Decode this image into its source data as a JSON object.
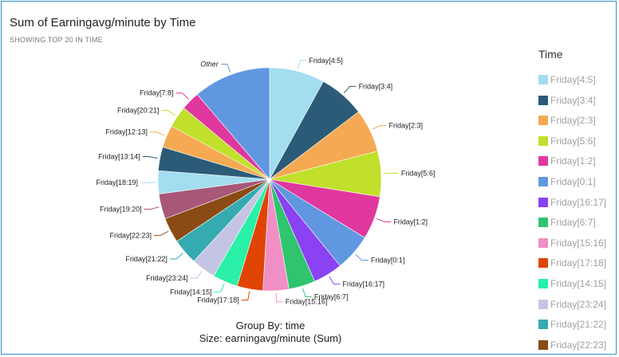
{
  "title": "Sum of Earningavg/minute by Time",
  "subtitle": "SHOWING TOP 20 IN TIME",
  "legend_title": "Time",
  "footer": {
    "group_by": "Group By: time",
    "size": "Size: earningavg/minute (Sum)"
  },
  "chart_data": {
    "type": "pie",
    "title": "Sum of Earningavg/minute by Time",
    "start_angle_deg": 0,
    "slices": [
      {
        "label": "Friday[4:5]",
        "value": 7.9,
        "color": "#a3ddf0"
      },
      {
        "label": "Friday[3:4]",
        "value": 6.6,
        "color": "#2c5b78"
      },
      {
        "label": "Friday[2:3]",
        "value": 6.2,
        "color": "#f5a952"
      },
      {
        "label": "Friday[5:6]",
        "value": 6.5,
        "color": "#c0e02c"
      },
      {
        "label": "Friday[1:2]",
        "value": 6.2,
        "color": "#e0379e"
      },
      {
        "label": "Friday[0:1]",
        "value": 5.3,
        "color": "#6197e0"
      },
      {
        "label": "Friday[16:17]",
        "value": 4.2,
        "color": "#8a42f2"
      },
      {
        "label": "Friday[6:7]",
        "value": 3.8,
        "color": "#2ec56e"
      },
      {
        "label": "Friday[15:16]",
        "value": 3.7,
        "color": "#f08fc5"
      },
      {
        "label": "Friday[17:18]",
        "value": 3.7,
        "color": "#e04404"
      },
      {
        "label": "Friday[14:15]",
        "value": 3.6,
        "color": "#2af0a8"
      },
      {
        "label": "Friday[23:24]",
        "value": 3.5,
        "color": "#c4c5e4"
      },
      {
        "label": "Friday[21:22]",
        "value": 3.7,
        "color": "#35aab0"
      },
      {
        "label": "Friday[22:23]",
        "value": 3.6,
        "color": "#8a4b14"
      },
      {
        "label": "Friday[19:20]",
        "value": 3.6,
        "color": "#a85778"
      },
      {
        "label": "Friday[18:19]",
        "value": 3.3,
        "color": "#a3ddf0"
      },
      {
        "label": "Friday[13:14]",
        "value": 3.4,
        "color": "#2c5b78"
      },
      {
        "label": "Friday[12:13]",
        "value": 3.2,
        "color": "#f5a952"
      },
      {
        "label": "Friday[20:21]",
        "value": 3.1,
        "color": "#c0e02c"
      },
      {
        "label": "Friday[7:8]",
        "value": 2.7,
        "color": "#e0379e"
      },
      {
        "label": "Other",
        "value": 11.1,
        "color": "#6197e0",
        "italic": true
      }
    ]
  },
  "legend": [
    {
      "label": "Friday[4:5]",
      "color": "#a3ddf0"
    },
    {
      "label": "Friday[3:4]",
      "color": "#2c5b78"
    },
    {
      "label": "Friday[2:3]",
      "color": "#f5a952"
    },
    {
      "label": "Friday[5:6]",
      "color": "#c0e02c"
    },
    {
      "label": "Friday[1:2]",
      "color": "#e0379e"
    },
    {
      "label": "Friday[0:1]",
      "color": "#6197e0"
    },
    {
      "label": "Friday[16:17]",
      "color": "#8a42f2"
    },
    {
      "label": "Friday[6:7]",
      "color": "#2ec56e"
    },
    {
      "label": "Friday[15:16]",
      "color": "#f08fc5"
    },
    {
      "label": "Friday[17:18]",
      "color": "#e04404"
    },
    {
      "label": "Friday[14:15]",
      "color": "#2af0a8"
    },
    {
      "label": "Friday[23:24]",
      "color": "#c4c5e4"
    },
    {
      "label": "Friday[21:22]",
      "color": "#35aab0"
    },
    {
      "label": "Friday[22:23]",
      "color": "#8a4b14"
    }
  ]
}
